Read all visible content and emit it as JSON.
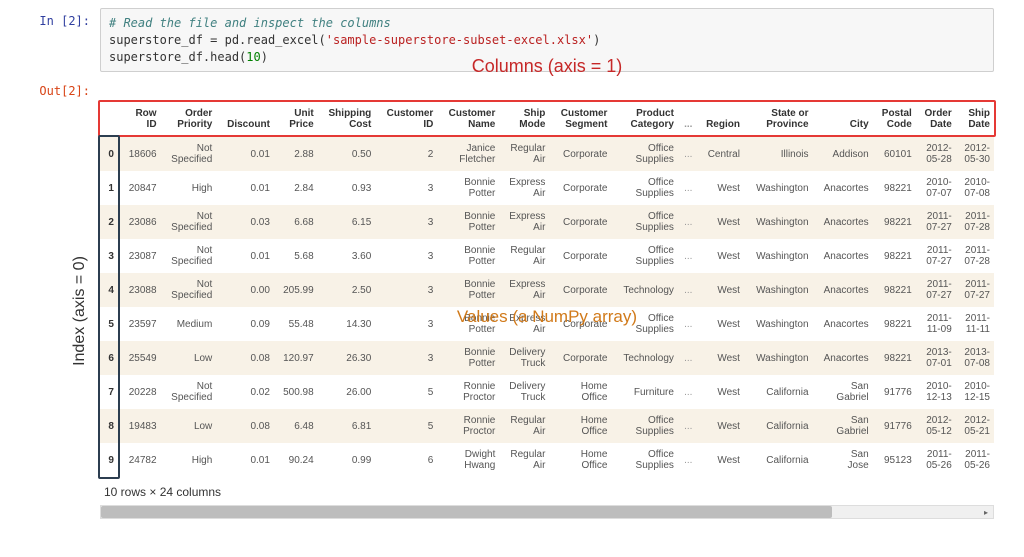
{
  "input": {
    "prompt": "In [2]:",
    "code_comment": "# Read the file and inspect the columns",
    "code_line2_a": "superstore_df = pd.read_excel(",
    "code_line2_str": "'sample-superstore-subset-excel.xlsx'",
    "code_line2_b": ")",
    "code_line3_a": "superstore_df.head(",
    "code_line3_num": "10",
    "code_line3_b": ")"
  },
  "output_prompt": "Out[2]:",
  "annotations": {
    "columns": "Columns (axis = 1)",
    "index": "Index (axis = 0)",
    "values": "Values (a NumPy array)"
  },
  "highlight": {
    "header_color": "#e53935",
    "index_color": "#2c3e50",
    "values_color": "#d17a1a"
  },
  "table": {
    "columns": [
      "Row ID",
      "Order Priority",
      "Discount",
      "Unit Price",
      "Shipping Cost",
      "Customer ID",
      "Customer Name",
      "Ship Mode",
      "Customer Segment",
      "Product Category",
      "...",
      "Region",
      "State or Province",
      "City",
      "Postal Code",
      "Order Date",
      "Ship Date"
    ],
    "index": [
      "0",
      "1",
      "2",
      "3",
      "4",
      "5",
      "6",
      "7",
      "8",
      "9"
    ],
    "rows": [
      [
        "18606",
        "Not Specified",
        "0.01",
        "2.88",
        "0.50",
        "2",
        "Janice Fletcher",
        "Regular Air",
        "Corporate",
        "Office Supplies",
        "...",
        "Central",
        "Illinois",
        "Addison",
        "60101",
        "2012-05-28",
        "2012-05-30"
      ],
      [
        "20847",
        "High",
        "0.01",
        "2.84",
        "0.93",
        "3",
        "Bonnie Potter",
        "Express Air",
        "Corporate",
        "Office Supplies",
        "...",
        "West",
        "Washington",
        "Anacortes",
        "98221",
        "2010-07-07",
        "2010-07-08"
      ],
      [
        "23086",
        "Not Specified",
        "0.03",
        "6.68",
        "6.15",
        "3",
        "Bonnie Potter",
        "Express Air",
        "Corporate",
        "Office Supplies",
        "...",
        "West",
        "Washington",
        "Anacortes",
        "98221",
        "2011-07-27",
        "2011-07-28"
      ],
      [
        "23087",
        "Not Specified",
        "0.01",
        "5.68",
        "3.60",
        "3",
        "Bonnie Potter",
        "Regular Air",
        "Corporate",
        "Office Supplies",
        "...",
        "West",
        "Washington",
        "Anacortes",
        "98221",
        "2011-07-27",
        "2011-07-28"
      ],
      [
        "23088",
        "Not Specified",
        "0.00",
        "205.99",
        "2.50",
        "3",
        "Bonnie Potter",
        "Express Air",
        "Corporate",
        "Technology",
        "...",
        "West",
        "Washington",
        "Anacortes",
        "98221",
        "2011-07-27",
        "2011-07-27"
      ],
      [
        "23597",
        "Medium",
        "0.09",
        "55.48",
        "14.30",
        "3",
        "Bonnie Potter",
        "Express Air",
        "Corporate",
        "Office Supplies",
        "...",
        "West",
        "Washington",
        "Anacortes",
        "98221",
        "2011-11-09",
        "2011-11-11"
      ],
      [
        "25549",
        "Low",
        "0.08",
        "120.97",
        "26.30",
        "3",
        "Bonnie Potter",
        "Delivery Truck",
        "Corporate",
        "Technology",
        "...",
        "West",
        "Washington",
        "Anacortes",
        "98221",
        "2013-07-01",
        "2013-07-08"
      ],
      [
        "20228",
        "Not Specified",
        "0.02",
        "500.98",
        "26.00",
        "5",
        "Ronnie Proctor",
        "Delivery Truck",
        "Home Office",
        "Furniture",
        "...",
        "West",
        "California",
        "San Gabriel",
        "91776",
        "2010-12-13",
        "2010-12-15"
      ],
      [
        "19483",
        "Low",
        "0.08",
        "6.48",
        "6.81",
        "5",
        "Ronnie Proctor",
        "Regular Air",
        "Home Office",
        "Office Supplies",
        "...",
        "West",
        "California",
        "San Gabriel",
        "91776",
        "2012-05-12",
        "2012-05-21"
      ],
      [
        "24782",
        "High",
        "0.01",
        "90.24",
        "0.99",
        "6",
        "Dwight Hwang",
        "Regular Air",
        "Home Office",
        "Office Supplies",
        "...",
        "West",
        "California",
        "San Jose",
        "95123",
        "2011-05-26",
        "2011-05-26"
      ]
    ],
    "summary": "10 rows × 24 columns"
  }
}
